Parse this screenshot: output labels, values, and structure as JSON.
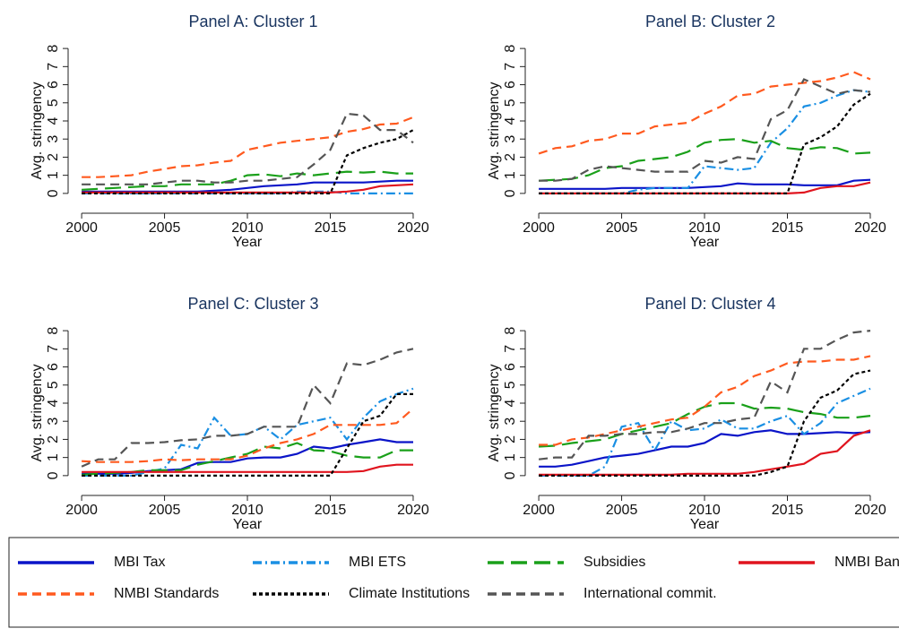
{
  "chart_data": [
    {
      "type": "line",
      "title": "Panel A: Cluster 1",
      "xlabel": "Year",
      "ylabel": "Avg. stringency",
      "x": [
        2000,
        2001,
        2002,
        2003,
        2004,
        2005,
        2006,
        2007,
        2008,
        2009,
        2010,
        2011,
        2012,
        2013,
        2014,
        2015,
        2016,
        2017,
        2018,
        2019,
        2020
      ],
      "xlim": [
        1999.4,
        2021.3
      ],
      "xticks": [
        2000,
        2005,
        2010,
        2015,
        2020
      ],
      "ylim": [
        -0.6,
        8.5
      ],
      "yticks": [
        0,
        1,
        2,
        3,
        4,
        5,
        6,
        7,
        8
      ],
      "series": [
        {
          "name": "MBI Tax",
          "color": "#0a14c8",
          "linestyle": "solid",
          "values": [
            0.1,
            0.1,
            0.1,
            0.1,
            0.1,
            0.1,
            0.1,
            0.1,
            0.15,
            0.2,
            0.3,
            0.4,
            0.45,
            0.5,
            0.6,
            0.6,
            0.6,
            0.6,
            0.65,
            0.7,
            0.7
          ]
        },
        {
          "name": "MBI ETS",
          "color": "#1a8fe3",
          "linestyle": "dash-dot",
          "values": [
            0,
            0,
            0,
            0,
            0,
            0,
            0,
            0,
            0,
            0,
            0,
            0,
            0,
            0.1,
            0.1,
            0.1,
            0,
            0,
            0,
            0,
            0
          ]
        },
        {
          "name": "Subsidies",
          "color": "#1aa01a",
          "linestyle": "long-dash",
          "values": [
            0.2,
            0.25,
            0.3,
            0.35,
            0.4,
            0.4,
            0.5,
            0.5,
            0.5,
            0.7,
            1.0,
            1.05,
            0.95,
            1.1,
            1.0,
            1.1,
            1.2,
            1.15,
            1.2,
            1.1,
            1.1
          ]
        },
        {
          "name": "NMBI Bans",
          "color": "#e0141e",
          "linestyle": "solid",
          "values": [
            0.05,
            0.05,
            0.05,
            0.05,
            0.05,
            0.05,
            0.05,
            0.05,
            0.05,
            0.05,
            0.05,
            0.05,
            0.05,
            0.05,
            0.05,
            0.05,
            0.1,
            0.2,
            0.4,
            0.45,
            0.5
          ]
        },
        {
          "name": "NMBI Standards",
          "color": "#ff5a1f",
          "linestyle": "dash",
          "values": [
            0.9,
            0.9,
            0.95,
            1.0,
            1.2,
            1.35,
            1.5,
            1.55,
            1.7,
            1.8,
            2.4,
            2.6,
            2.8,
            2.9,
            3.0,
            3.1,
            3.4,
            3.55,
            3.8,
            3.85,
            4.2
          ]
        },
        {
          "name": "Climate Institutions",
          "color": "#000000",
          "linestyle": "dot",
          "values": [
            0,
            0,
            0,
            0,
            0,
            0,
            0,
            0,
            0,
            0,
            0,
            0,
            0,
            0,
            0,
            0,
            2.1,
            2.5,
            2.8,
            3.0,
            3.5
          ]
        },
        {
          "name": "International commit.",
          "color": "#555555",
          "linestyle": "dash",
          "values": [
            0.5,
            0.5,
            0.5,
            0.5,
            0.5,
            0.6,
            0.7,
            0.7,
            0.6,
            0.6,
            0.7,
            0.7,
            0.8,
            0.9,
            1.6,
            2.4,
            4.4,
            4.3,
            3.5,
            3.5,
            2.8
          ]
        }
      ]
    },
    {
      "type": "line",
      "title": "Panel B: Cluster 2",
      "xlabel": "Year",
      "ylabel": "Avg. stringency",
      "x": [
        2000,
        2001,
        2002,
        2003,
        2004,
        2005,
        2006,
        2007,
        2008,
        2009,
        2010,
        2011,
        2012,
        2013,
        2014,
        2015,
        2016,
        2017,
        2018,
        2019,
        2020
      ],
      "xlim": [
        1999.4,
        2021.3
      ],
      "xticks": [
        2000,
        2005,
        2010,
        2015,
        2020
      ],
      "ylim": [
        -0.6,
        8.5
      ],
      "yticks": [
        0,
        1,
        2,
        3,
        4,
        5,
        6,
        7,
        8
      ],
      "series": [
        {
          "color": "#0a14c8",
          "linestyle": "solid",
          "values": [
            0.25,
            0.25,
            0.25,
            0.25,
            0.25,
            0.3,
            0.3,
            0.3,
            0.3,
            0.3,
            0.35,
            0.4,
            0.55,
            0.5,
            0.5,
            0.5,
            0.45,
            0.45,
            0.45,
            0.7,
            0.75
          ]
        },
        {
          "color": "#1a8fe3",
          "linestyle": "dash-dot",
          "values": [
            0,
            0,
            0,
            0,
            0,
            0,
            0.2,
            0.3,
            0.3,
            0.3,
            1.5,
            1.4,
            1.3,
            1.4,
            2.8,
            3.6,
            4.8,
            5.0,
            5.4,
            5.7,
            5.6
          ]
        },
        {
          "color": "#1aa01a",
          "linestyle": "long-dash",
          "values": [
            0.7,
            0.75,
            0.8,
            1.0,
            1.4,
            1.5,
            1.8,
            1.9,
            2.0,
            2.3,
            2.8,
            2.95,
            3.0,
            2.8,
            2.9,
            2.5,
            2.4,
            2.55,
            2.5,
            2.2,
            2.25
          ]
        },
        {
          "color": "#e0141e",
          "linestyle": "solid",
          "values": [
            0,
            0,
            0,
            0,
            0,
            0,
            0,
            0,
            0,
            0,
            0,
            0,
            0,
            0,
            0,
            0,
            0.05,
            0.3,
            0.4,
            0.4,
            0.6
          ]
        },
        {
          "color": "#ff5a1f",
          "linestyle": "dash",
          "values": [
            2.2,
            2.5,
            2.6,
            2.9,
            3.0,
            3.3,
            3.3,
            3.7,
            3.8,
            3.9,
            4.4,
            4.8,
            5.4,
            5.5,
            5.9,
            6.0,
            6.1,
            6.2,
            6.4,
            6.7,
            6.3
          ]
        },
        {
          "color": "#000000",
          "linestyle": "dot",
          "values": [
            0,
            0,
            0,
            0,
            0,
            0,
            0,
            0,
            0,
            0,
            0,
            0,
            0,
            0,
            0,
            0,
            2.7,
            3.1,
            3.7,
            4.9,
            5.5
          ]
        },
        {
          "color": "#555555",
          "linestyle": "dash",
          "values": [
            0.7,
            0.7,
            0.8,
            1.3,
            1.5,
            1.4,
            1.3,
            1.2,
            1.2,
            1.2,
            1.8,
            1.7,
            2.0,
            1.9,
            4.1,
            4.6,
            6.3,
            5.9,
            5.5,
            5.7,
            5.6
          ]
        }
      ]
    },
    {
      "type": "line",
      "title": "Panel C: Cluster 3",
      "xlabel": "Year",
      "ylabel": "Avg. stringency",
      "x": [
        2000,
        2001,
        2002,
        2003,
        2004,
        2005,
        2006,
        2007,
        2008,
        2009,
        2010,
        2011,
        2012,
        2013,
        2014,
        2015,
        2016,
        2017,
        2018,
        2019,
        2020
      ],
      "xlim": [
        1999.4,
        2021.3
      ],
      "xticks": [
        2000,
        2005,
        2010,
        2015,
        2020
      ],
      "ylim": [
        -0.6,
        8.5
      ],
      "yticks": [
        0,
        1,
        2,
        3,
        4,
        5,
        6,
        7,
        8
      ],
      "series": [
        {
          "color": "#0a14c8",
          "linestyle": "solid",
          "values": [
            0.1,
            0.1,
            0.1,
            0.15,
            0.25,
            0.3,
            0.35,
            0.7,
            0.75,
            0.75,
            0.95,
            1.0,
            1.0,
            1.2,
            1.6,
            1.5,
            1.7,
            1.85,
            2.0,
            1.85,
            1.85
          ]
        },
        {
          "color": "#1a8fe3",
          "linestyle": "dash-dot",
          "values": [
            0,
            0,
            0,
            0,
            0.2,
            0.4,
            1.7,
            1.5,
            3.2,
            2.2,
            2.3,
            2.7,
            2.0,
            2.8,
            3.0,
            3.2,
            2.0,
            3.2,
            4.1,
            4.5,
            4.8
          ]
        },
        {
          "color": "#1aa01a",
          "linestyle": "long-dash",
          "values": [
            0.05,
            0.1,
            0.15,
            0.2,
            0.3,
            0.3,
            0.3,
            0.6,
            0.8,
            1.0,
            1.2,
            1.6,
            1.5,
            1.8,
            1.4,
            1.35,
            1.1,
            1.0,
            1.0,
            1.4,
            1.4
          ]
        },
        {
          "color": "#e0141e",
          "linestyle": "solid",
          "values": [
            0.2,
            0.2,
            0.2,
            0.2,
            0.2,
            0.2,
            0.2,
            0.2,
            0.2,
            0.2,
            0.2,
            0.2,
            0.2,
            0.2,
            0.2,
            0.2,
            0.2,
            0.25,
            0.5,
            0.6,
            0.6
          ]
        },
        {
          "color": "#ff5a1f",
          "linestyle": "dash",
          "values": [
            0.8,
            0.75,
            0.75,
            0.75,
            0.8,
            0.9,
            0.85,
            0.9,
            0.9,
            0.9,
            1.1,
            1.5,
            1.8,
            2.0,
            2.3,
            2.8,
            2.8,
            2.8,
            2.8,
            2.9,
            3.7
          ]
        },
        {
          "color": "#000000",
          "linestyle": "dot",
          "values": [
            0,
            0,
            0,
            0,
            0,
            0,
            0,
            0,
            0,
            0,
            0,
            0,
            0,
            0,
            0,
            0,
            1.5,
            3.0,
            3.3,
            4.5,
            4.5
          ]
        },
        {
          "color": "#555555",
          "linestyle": "dash",
          "values": [
            0.5,
            0.9,
            0.9,
            1.8,
            1.8,
            1.85,
            1.95,
            2.0,
            2.2,
            2.2,
            2.3,
            2.7,
            2.7,
            2.7,
            5.0,
            4.0,
            6.2,
            6.1,
            6.4,
            6.8,
            7.0
          ]
        }
      ]
    },
    {
      "type": "line",
      "title": "Panel D: Cluster 4",
      "xlabel": "Year",
      "ylabel": "Avg. stringency",
      "x": [
        2000,
        2001,
        2002,
        2003,
        2004,
        2005,
        2006,
        2007,
        2008,
        2009,
        2010,
        2011,
        2012,
        2013,
        2014,
        2015,
        2016,
        2017,
        2018,
        2019,
        2020
      ],
      "xlim": [
        1999.4,
        2021.3
      ],
      "xticks": [
        2000,
        2005,
        2010,
        2015,
        2020
      ],
      "ylim": [
        -0.6,
        8.5
      ],
      "yticks": [
        0,
        1,
        2,
        3,
        4,
        5,
        6,
        7,
        8
      ],
      "series": [
        {
          "color": "#0a14c8",
          "linestyle": "solid",
          "values": [
            0.5,
            0.5,
            0.6,
            0.8,
            1.0,
            1.1,
            1.2,
            1.4,
            1.6,
            1.6,
            1.8,
            2.3,
            2.2,
            2.4,
            2.5,
            2.3,
            2.3,
            2.35,
            2.4,
            2.35,
            2.4
          ]
        },
        {
          "color": "#1a8fe3",
          "linestyle": "dash-dot",
          "values": [
            0,
            0,
            0,
            0,
            0.5,
            2.7,
            2.9,
            1.4,
            3.0,
            2.5,
            2.6,
            3.1,
            2.6,
            2.6,
            3.0,
            3.3,
            2.3,
            2.9,
            4.0,
            4.4,
            4.8
          ]
        },
        {
          "color": "#1aa01a",
          "linestyle": "long-dash",
          "values": [
            1.6,
            1.65,
            1.8,
            1.9,
            2.0,
            2.3,
            2.5,
            2.7,
            2.9,
            3.4,
            3.8,
            4.0,
            4.0,
            3.7,
            3.75,
            3.7,
            3.5,
            3.4,
            3.2,
            3.2,
            3.3
          ]
        },
        {
          "color": "#e0141e",
          "linestyle": "solid",
          "values": [
            0.05,
            0.05,
            0.05,
            0.05,
            0.05,
            0.05,
            0.05,
            0.05,
            0.05,
            0.1,
            0.1,
            0.1,
            0.1,
            0.2,
            0.35,
            0.5,
            0.65,
            1.2,
            1.35,
            2.2,
            2.5
          ]
        },
        {
          "color": "#ff5a1f",
          "linestyle": "dash",
          "values": [
            1.7,
            1.7,
            2.0,
            2.1,
            2.3,
            2.5,
            2.7,
            2.9,
            3.1,
            3.2,
            3.8,
            4.6,
            4.9,
            5.5,
            5.8,
            6.2,
            6.3,
            6.3,
            6.4,
            6.4,
            6.6
          ]
        },
        {
          "color": "#000000",
          "linestyle": "dot",
          "values": [
            0,
            0,
            0,
            0,
            0,
            0,
            0,
            0,
            0,
            0,
            0,
            0,
            0,
            0,
            0.2,
            0.5,
            3.0,
            4.3,
            4.7,
            5.6,
            5.8
          ]
        },
        {
          "color": "#555555",
          "linestyle": "dash",
          "values": [
            0.9,
            1.0,
            1.0,
            2.2,
            2.2,
            2.3,
            2.3,
            2.4,
            2.4,
            2.6,
            2.9,
            2.9,
            3.1,
            3.2,
            5.2,
            4.6,
            7.0,
            7.0,
            7.5,
            7.9,
            8.0
          ]
        }
      ]
    }
  ]
}
